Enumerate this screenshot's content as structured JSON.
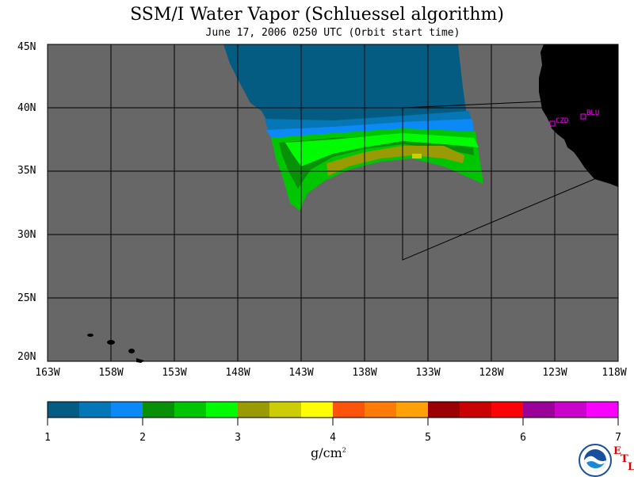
{
  "title": "SSM/I Water Vapor (Schluessel algorithm)",
  "subtitle": "June 17, 2006  0250 UTC  (Orbit start time)",
  "map": {
    "lat_ticks": [
      "45N",
      "40N",
      "35N",
      "30N",
      "25N",
      "20N"
    ],
    "lon_ticks": [
      "163W",
      "158W",
      "153W",
      "148W",
      "143W",
      "138W",
      "133W",
      "128W",
      "123W",
      "118W"
    ],
    "lat_range": [
      20,
      45
    ],
    "lon_range": [
      -163,
      -118
    ],
    "grid": true,
    "background_color": "#676767",
    "land_color": "#000000",
    "stations": [
      {
        "label": "CZD",
        "lon": -123.0,
        "lat": 38.6
      },
      {
        "label": "BLU",
        "lon": -120.8,
        "lat": 39.3
      }
    ]
  },
  "colorbar": {
    "units": "g/cm",
    "units_exp": "2",
    "ticks": [
      "1",
      "2",
      "3",
      "4",
      "5",
      "6",
      "7"
    ],
    "colors": [
      "#045c83",
      "#0576b6",
      "#0b8af7",
      "#089009",
      "#00c602",
      "#00fb02",
      "#9a9b04",
      "#cccd06",
      "#fdfe05",
      "#fd540b",
      "#fd7c07",
      "#fea207",
      "#9a0003",
      "#c90204",
      "#fa0407",
      "#9b0297",
      "#c903ca",
      "#f802fd"
    ]
  },
  "logo": {
    "name": "NOAA",
    "lab_letters": [
      "E",
      "T",
      "L"
    ]
  }
}
